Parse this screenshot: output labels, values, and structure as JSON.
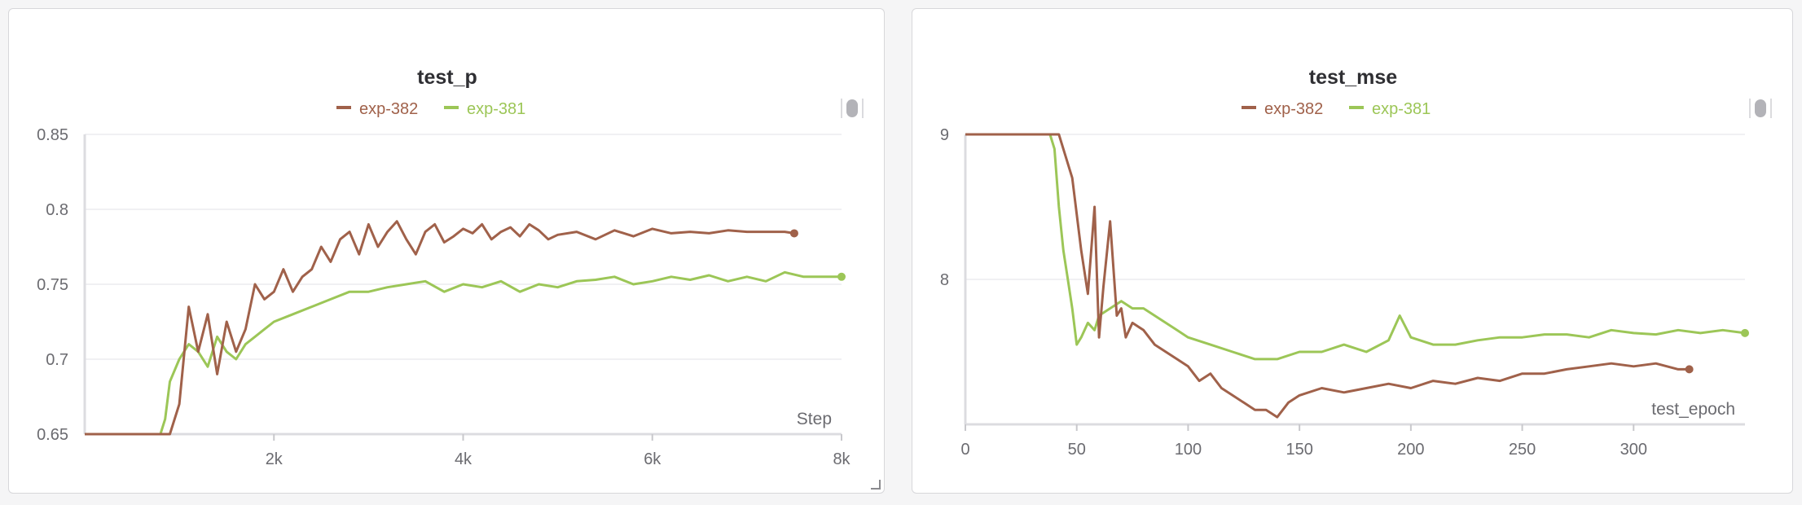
{
  "panels": [
    {
      "title": "test_p",
      "xlabel": "Step",
      "legend": [
        {
          "name": "exp-382",
          "color": "#a0614a"
        },
        {
          "name": "exp-381",
          "color": "#9cc657"
        }
      ],
      "x_ticks": [
        "2k",
        "4k",
        "6k",
        "8k"
      ],
      "y_ticks": [
        "0.85",
        "0.8",
        "0.75",
        "0.7",
        "0.65"
      ]
    },
    {
      "title": "test_mse",
      "xlabel": "test_epoch",
      "legend": [
        {
          "name": "exp-382",
          "color": "#a0614a"
        },
        {
          "name": "exp-381",
          "color": "#9cc657"
        }
      ],
      "x_ticks": [
        "0",
        "50",
        "100",
        "150",
        "200",
        "250",
        "300"
      ],
      "y_ticks": [
        "9",
        "8"
      ]
    }
  ],
  "chart_data": [
    {
      "type": "line",
      "title": "test_p",
      "xlabel": "Step",
      "ylabel": "",
      "xlim": [
        0,
        8000
      ],
      "ylim": [
        0.65,
        0.85
      ],
      "x_ticks": [
        2000,
        4000,
        6000,
        8000
      ],
      "y_ticks": [
        0.65,
        0.7,
        0.75,
        0.8,
        0.85
      ],
      "grid": true,
      "legend_position": "top-center",
      "series": [
        {
          "name": "exp-382",
          "color": "#a0614a",
          "x": [
            0,
            900,
            1000,
            1100,
            1200,
            1300,
            1400,
            1500,
            1600,
            1700,
            1800,
            1900,
            2000,
            2100,
            2200,
            2300,
            2400,
            2500,
            2600,
            2700,
            2800,
            2900,
            3000,
            3100,
            3200,
            3300,
            3400,
            3500,
            3600,
            3700,
            3800,
            3900,
            4000,
            4100,
            4200,
            4300,
            4400,
            4500,
            4600,
            4700,
            4800,
            4900,
            5000,
            5200,
            5400,
            5600,
            5800,
            6000,
            6200,
            6400,
            6600,
            6800,
            7000,
            7200,
            7400,
            7500
          ],
          "values": [
            0.65,
            0.65,
            0.67,
            0.735,
            0.705,
            0.73,
            0.69,
            0.725,
            0.705,
            0.72,
            0.75,
            0.74,
            0.745,
            0.76,
            0.745,
            0.755,
            0.76,
            0.775,
            0.765,
            0.78,
            0.785,
            0.77,
            0.79,
            0.775,
            0.785,
            0.792,
            0.78,
            0.77,
            0.785,
            0.79,
            0.778,
            0.782,
            0.787,
            0.784,
            0.79,
            0.78,
            0.785,
            0.788,
            0.782,
            0.79,
            0.786,
            0.78,
            0.783,
            0.785,
            0.78,
            0.786,
            0.782,
            0.787,
            0.784,
            0.785,
            0.784,
            0.786,
            0.785,
            0.785,
            0.785,
            0.784
          ]
        },
        {
          "name": "exp-381",
          "color": "#9cc657",
          "x": [
            0,
            800,
            850,
            900,
            1000,
            1100,
            1200,
            1300,
            1400,
            1500,
            1600,
            1700,
            1800,
            1900,
            2000,
            2200,
            2400,
            2600,
            2800,
            3000,
            3200,
            3400,
            3600,
            3800,
            4000,
            4200,
            4400,
            4600,
            4800,
            5000,
            5200,
            5400,
            5600,
            5800,
            6000,
            6200,
            6400,
            6600,
            6800,
            7000,
            7200,
            7400,
            7600,
            7800,
            8000
          ],
          "values": [
            0.65,
            0.65,
            0.66,
            0.685,
            0.7,
            0.71,
            0.705,
            0.695,
            0.715,
            0.705,
            0.7,
            0.71,
            0.715,
            0.72,
            0.725,
            0.73,
            0.735,
            0.74,
            0.745,
            0.745,
            0.748,
            0.75,
            0.752,
            0.745,
            0.75,
            0.748,
            0.752,
            0.745,
            0.75,
            0.748,
            0.752,
            0.753,
            0.755,
            0.75,
            0.752,
            0.755,
            0.753,
            0.756,
            0.752,
            0.755,
            0.752,
            0.758,
            0.755,
            0.755,
            0.755
          ]
        }
      ]
    },
    {
      "type": "line",
      "title": "test_mse",
      "xlabel": "test_epoch",
      "ylabel": "",
      "xlim": [
        0,
        350
      ],
      "ylim": [
        7,
        9
      ],
      "x_ticks": [
        0,
        50,
        100,
        150,
        200,
        250,
        300
      ],
      "y_ticks": [
        8,
        9
      ],
      "grid": true,
      "legend_position": "top-center",
      "series": [
        {
          "name": "exp-382",
          "color": "#a0614a",
          "x": [
            0,
            40,
            42,
            45,
            48,
            50,
            52,
            55,
            58,
            60,
            62,
            65,
            68,
            70,
            72,
            75,
            80,
            85,
            90,
            95,
            100,
            105,
            110,
            115,
            120,
            125,
            130,
            135,
            140,
            145,
            150,
            160,
            170,
            180,
            190,
            200,
            210,
            220,
            230,
            240,
            250,
            260,
            270,
            280,
            290,
            300,
            310,
            320,
            325
          ],
          "values": [
            9,
            9,
            9,
            8.85,
            8.7,
            8.45,
            8.2,
            7.9,
            8.5,
            7.6,
            7.95,
            8.4,
            7.75,
            7.8,
            7.6,
            7.7,
            7.65,
            7.55,
            7.5,
            7.45,
            7.4,
            7.3,
            7.35,
            7.25,
            7.2,
            7.15,
            7.1,
            7.1,
            7.05,
            7.15,
            7.2,
            7.25,
            7.22,
            7.25,
            7.28,
            7.25,
            7.3,
            7.28,
            7.32,
            7.3,
            7.35,
            7.35,
            7.38,
            7.4,
            7.42,
            7.4,
            7.42,
            7.38,
            7.38
          ]
        },
        {
          "name": "exp-381",
          "color": "#9cc657",
          "x": [
            0,
            38,
            40,
            42,
            44,
            46,
            48,
            50,
            52,
            55,
            58,
            60,
            65,
            70,
            75,
            80,
            85,
            90,
            95,
            100,
            110,
            120,
            130,
            140,
            150,
            160,
            170,
            180,
            190,
            195,
            200,
            210,
            220,
            230,
            240,
            250,
            260,
            270,
            280,
            290,
            300,
            310,
            320,
            330,
            340,
            350
          ],
          "values": [
            9,
            9,
            8.9,
            8.5,
            8.2,
            8.0,
            7.8,
            7.55,
            7.6,
            7.7,
            7.65,
            7.75,
            7.8,
            7.85,
            7.8,
            7.8,
            7.75,
            7.7,
            7.65,
            7.6,
            7.55,
            7.5,
            7.45,
            7.45,
            7.5,
            7.5,
            7.55,
            7.5,
            7.58,
            7.75,
            7.6,
            7.55,
            7.55,
            7.58,
            7.6,
            7.6,
            7.62,
            7.62,
            7.6,
            7.65,
            7.63,
            7.62,
            7.65,
            7.63,
            7.65,
            7.63
          ]
        }
      ]
    }
  ]
}
